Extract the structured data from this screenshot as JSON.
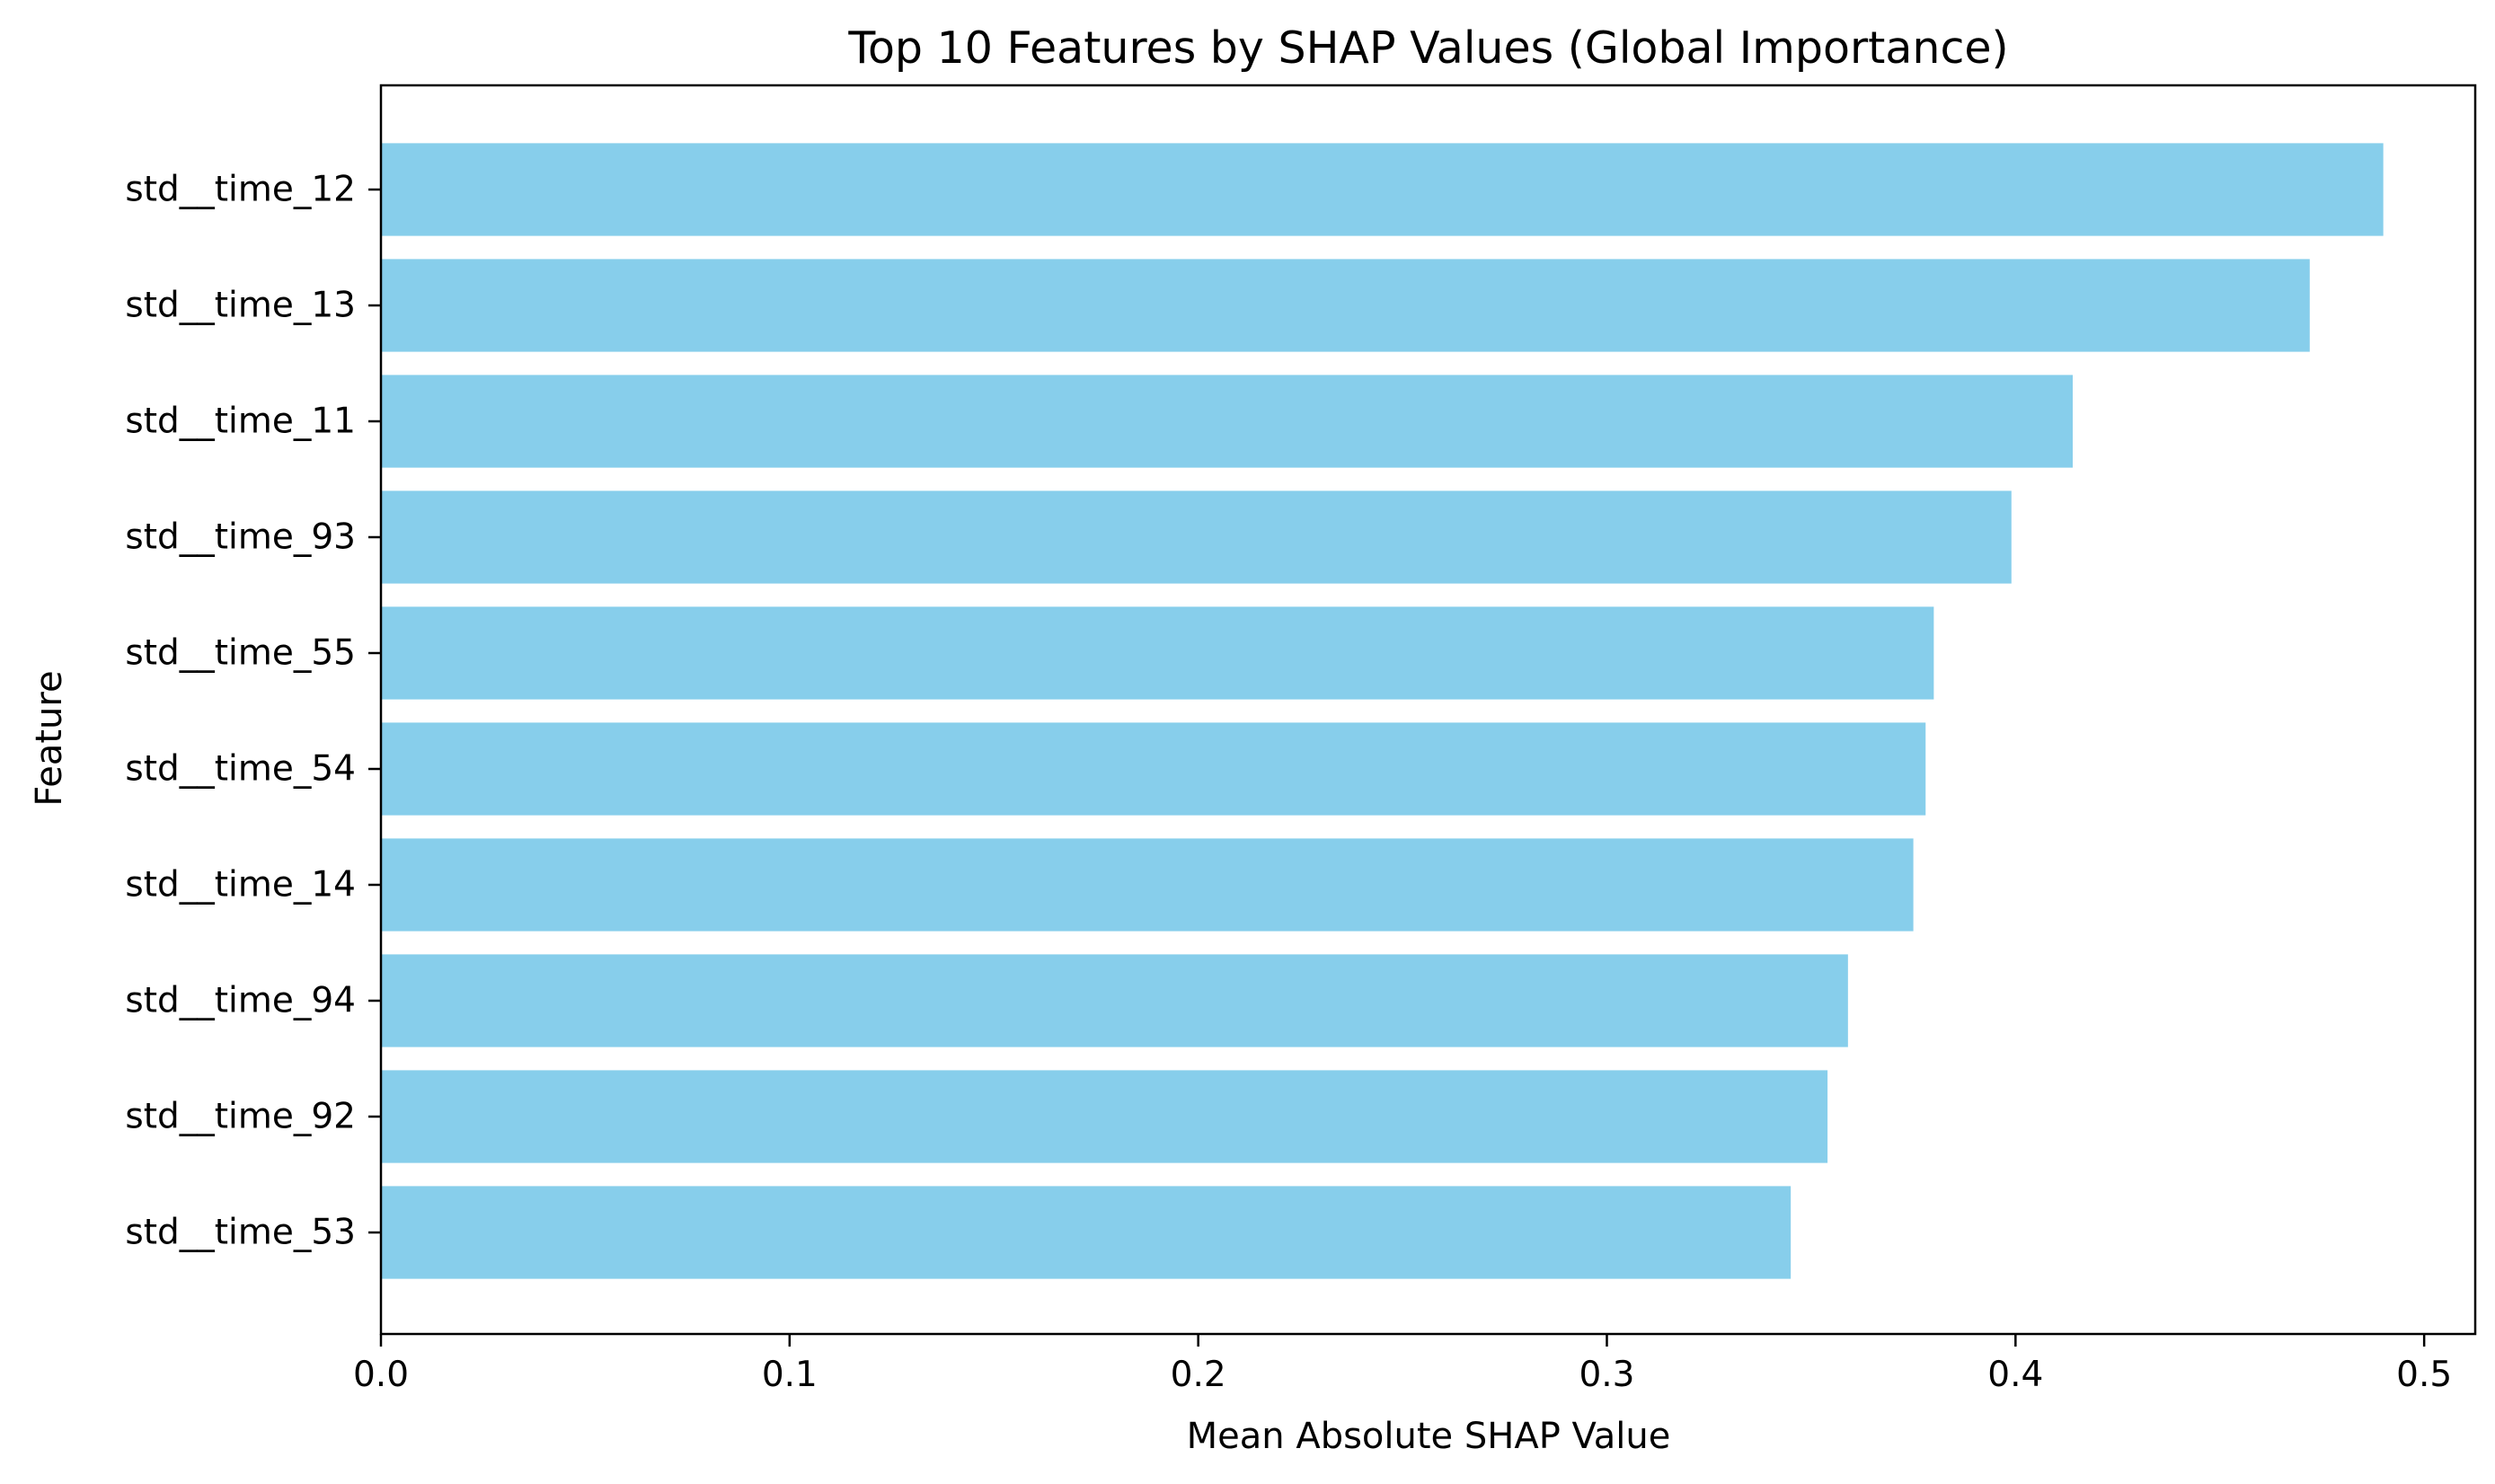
{
  "chart_data": {
    "type": "bar",
    "orientation": "horizontal",
    "title": "Top 10 Features by SHAP Values (Global Importance)",
    "xlabel": "Mean Absolute SHAP Value",
    "ylabel": "Feature",
    "categories": [
      "std__time_12",
      "std__time_13",
      "std__time_11",
      "std__time_93",
      "std__time_55",
      "std__time_54",
      "std__time_14",
      "std__time_94",
      "std__time_92",
      "std__time_53"
    ],
    "values": [
      0.49,
      0.472,
      0.414,
      0.399,
      0.38,
      0.378,
      0.375,
      0.359,
      0.354,
      0.345
    ],
    "xlim": [
      0.0,
      0.5125
    ],
    "xticks": [
      "0.0",
      "0.1",
      "0.2",
      "0.3",
      "0.4",
      "0.5"
    ],
    "grid": false,
    "legend": false,
    "bar_color": "#87ceeb"
  }
}
